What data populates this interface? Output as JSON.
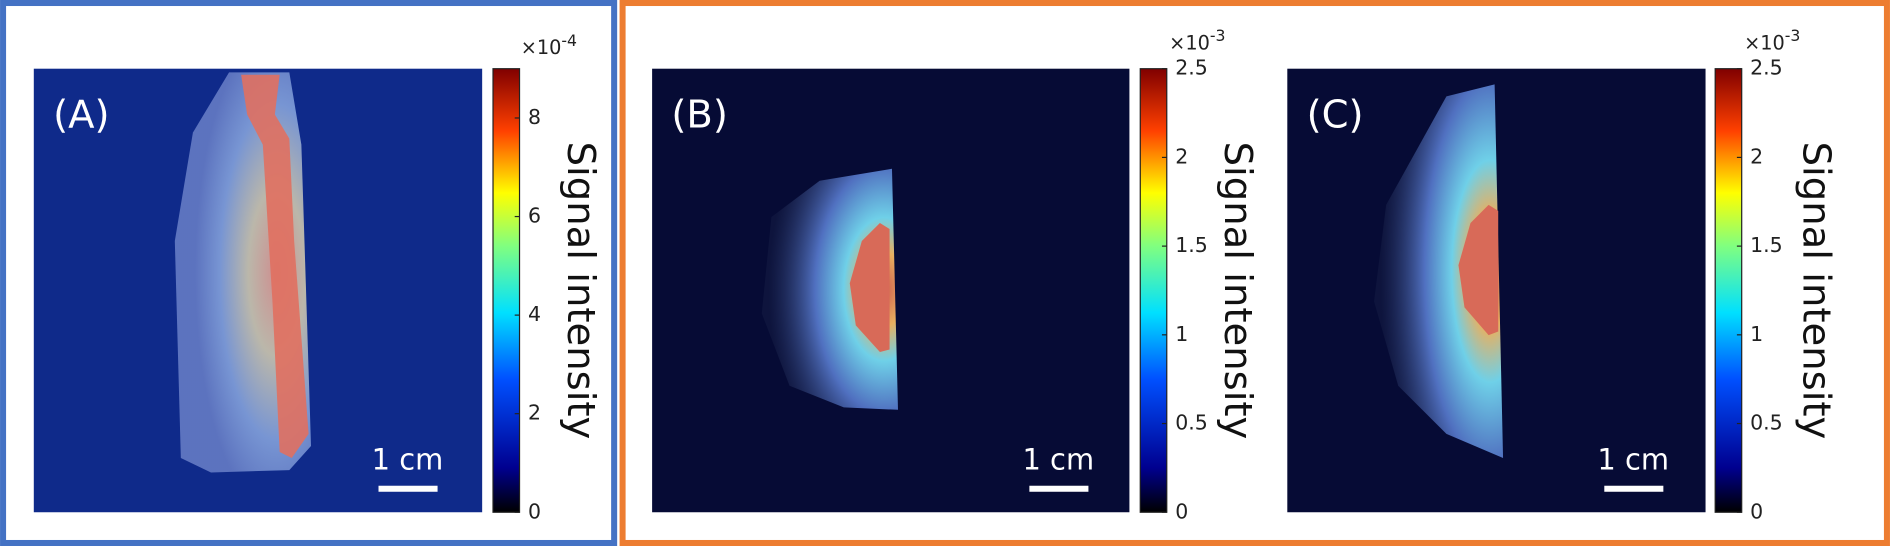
{
  "panels": [
    {
      "label": "(A)",
      "scale_bar": "1 cm",
      "colorbar": {
        "label": "Signal intensity",
        "multiplier": "×10",
        "exponent": "-4",
        "lim": [
          0,
          9
        ],
        "ticks": [
          0,
          2,
          4,
          6,
          8
        ]
      }
    },
    {
      "label": "(B)",
      "scale_bar": "1 cm",
      "colorbar": {
        "label": "Signal intensity",
        "multiplier": "×10",
        "exponent": "-3",
        "lim": [
          0,
          2.5
        ],
        "ticks": [
          0,
          0.5,
          1,
          1.5,
          2,
          2.5
        ]
      }
    },
    {
      "label": "(C)",
      "scale_bar": "1 cm",
      "colorbar": {
        "label": "Signal intensity",
        "multiplier": "×10",
        "exponent": "-3",
        "lim": [
          0,
          2.5
        ],
        "ticks": [
          0,
          0.5,
          1,
          1.5,
          2,
          2.5
        ]
      }
    }
  ]
}
